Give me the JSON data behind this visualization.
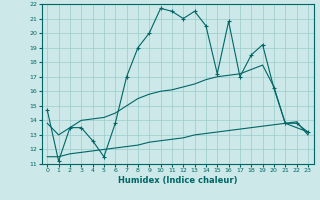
{
  "xlabel": "Humidex (Indice chaleur)",
  "xlim": [
    -0.5,
    23.5
  ],
  "ylim": [
    11,
    22
  ],
  "yticks": [
    11,
    12,
    13,
    14,
    15,
    16,
    17,
    18,
    19,
    20,
    21,
    22
  ],
  "xticks": [
    0,
    1,
    2,
    3,
    4,
    5,
    6,
    7,
    8,
    9,
    10,
    11,
    12,
    13,
    14,
    15,
    16,
    17,
    18,
    19,
    20,
    21,
    22,
    23
  ],
  "bg_color": "#cce8e8",
  "line_color": "#006666",
  "grid_color": "#99cccc",
  "curve1_x": [
    0,
    1,
    2,
    3,
    4,
    5,
    6,
    7,
    8,
    9,
    10,
    11,
    12,
    13,
    14,
    15,
    16,
    17,
    18,
    19,
    20,
    21,
    22,
    23
  ],
  "curve1_y": [
    14.7,
    11.2,
    13.5,
    13.5,
    12.6,
    11.5,
    13.8,
    17.0,
    19.0,
    20.0,
    21.7,
    21.5,
    21.0,
    21.5,
    20.5,
    17.2,
    20.8,
    17.0,
    18.5,
    19.2,
    16.2,
    13.8,
    13.8,
    13.2
  ],
  "curve2_x": [
    0,
    1,
    2,
    3,
    4,
    5,
    6,
    7,
    8,
    9,
    10,
    11,
    12,
    13,
    14,
    15,
    16,
    17,
    18,
    19,
    20,
    21,
    22,
    23
  ],
  "curve2_y": [
    13.8,
    13.0,
    13.5,
    14.0,
    14.1,
    14.2,
    14.5,
    15.0,
    15.5,
    15.8,
    16.0,
    16.1,
    16.3,
    16.5,
    16.8,
    17.0,
    17.1,
    17.2,
    17.5,
    17.8,
    16.3,
    13.8,
    13.5,
    13.2
  ],
  "curve3_lower_x": [
    0,
    1,
    2,
    3,
    4,
    5,
    6,
    7,
    8,
    9,
    10,
    11,
    12,
    13,
    14,
    15,
    16,
    17,
    18,
    19,
    20,
    21,
    22,
    23
  ],
  "curve3_lower_y": [
    11.5,
    11.5,
    11.7,
    11.8,
    11.9,
    12.0,
    12.1,
    12.2,
    12.3,
    12.5,
    12.6,
    12.7,
    12.8,
    13.0,
    13.1,
    13.2,
    13.3,
    13.4,
    13.5,
    13.6,
    13.7,
    13.8,
    13.9,
    13.0
  ]
}
